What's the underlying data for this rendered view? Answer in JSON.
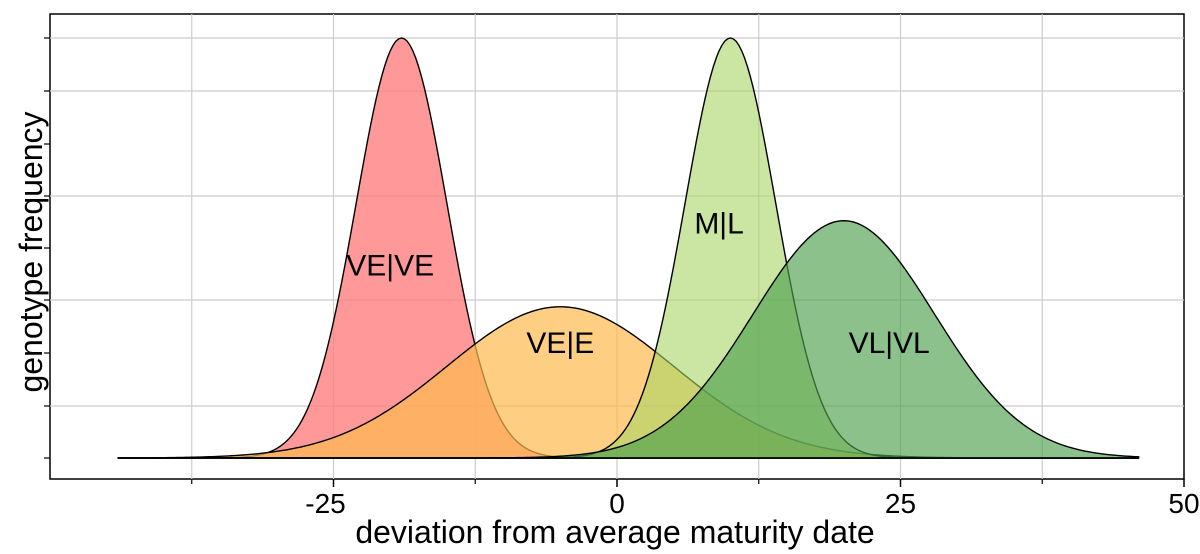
{
  "chart_data": {
    "type": "area",
    "xlabel": "deviation from average maturity date",
    "ylabel": "genotype frequency",
    "xlim": [
      -50,
      50
    ],
    "ylim": [
      0,
      0.21
    ],
    "x_ticks": [
      -25,
      0,
      25,
      50
    ],
    "x_tick_labels": [
      "-25",
      "0",
      "25",
      "50"
    ],
    "grid": true,
    "series": [
      {
        "name": "VE|VE",
        "distribution": "normal",
        "mean": -19,
        "sd": 4,
        "peak": 0.2,
        "color": "#ff7f7f",
        "opacity": 0.8
      },
      {
        "name": "VE|E",
        "distribution": "normal",
        "mean": -5,
        "sd": 10,
        "peak": 0.072,
        "color": "#fdbb4f",
        "opacity": 0.7
      },
      {
        "name": "M|L",
        "distribution": "normal",
        "mean": 10,
        "sd": 4,
        "peak": 0.2,
        "color": "#a8d564",
        "opacity": 0.6
      },
      {
        "name": "VL|VL",
        "distribution": "normal",
        "mean": 20,
        "sd": 8,
        "peak": 0.113,
        "color": "#4ea04e",
        "opacity": 0.65
      }
    ],
    "x_range_curves": [
      -44,
      46
    ]
  }
}
